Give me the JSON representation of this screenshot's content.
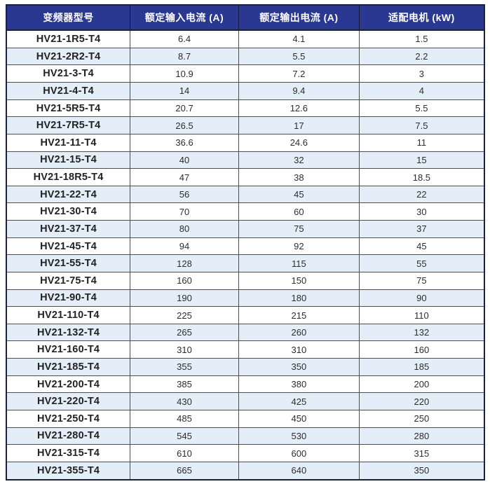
{
  "table": {
    "columns": [
      "变频器型号",
      "额定输入电流 (A)",
      "额定输出电流 (A)",
      "适配电机 (kW)"
    ],
    "rows": [
      [
        "HV21-1R5-T4",
        "6.4",
        "4.1",
        "1.5"
      ],
      [
        "HV21-2R2-T4",
        "8.7",
        "5.5",
        "2.2"
      ],
      [
        "HV21-3-T4",
        "10.9",
        "7.2",
        "3"
      ],
      [
        "HV21-4-T4",
        "14",
        "9.4",
        "4"
      ],
      [
        "HV21-5R5-T4",
        "20.7",
        "12.6",
        "5.5"
      ],
      [
        "HV21-7R5-T4",
        "26.5",
        "17",
        "7.5"
      ],
      [
        "HV21-11-T4",
        "36.6",
        "24.6",
        "11"
      ],
      [
        "HV21-15-T4",
        "40",
        "32",
        "15"
      ],
      [
        "HV21-18R5-T4",
        "47",
        "38",
        "18.5"
      ],
      [
        "HV21-22-T4",
        "56",
        "45",
        "22"
      ],
      [
        "HV21-30-T4",
        "70",
        "60",
        "30"
      ],
      [
        "HV21-37-T4",
        "80",
        "75",
        "37"
      ],
      [
        "HV21-45-T4",
        "94",
        "92",
        "45"
      ],
      [
        "HV21-55-T4",
        "128",
        "115",
        "55"
      ],
      [
        "HV21-75-T4",
        "160",
        "150",
        "75"
      ],
      [
        "HV21-90-T4",
        "190",
        "180",
        "90"
      ],
      [
        "HV21-110-T4",
        "225",
        "215",
        "110"
      ],
      [
        "HV21-132-T4",
        "265",
        "260",
        "132"
      ],
      [
        "HV21-160-T4",
        "310",
        "310",
        "160"
      ],
      [
        "HV21-185-T4",
        "355",
        "350",
        "185"
      ],
      [
        "HV21-200-T4",
        "385",
        "380",
        "200"
      ],
      [
        "HV21-220-T4",
        "430",
        "425",
        "220"
      ],
      [
        "HV21-250-T4",
        "485",
        "450",
        "250"
      ],
      [
        "HV21-280-T4",
        "545",
        "530",
        "280"
      ],
      [
        "HV21-315-T4",
        "610",
        "600",
        "315"
      ],
      [
        "HV21-355-T4",
        "665",
        "640",
        "350"
      ]
    ]
  },
  "colors": {
    "header_bg": "#2b3892",
    "header_text": "#ffffff",
    "stripe_bg": "#e3eef8",
    "row_bg": "#ffffff",
    "grid_line": "#4d4d4d",
    "outer_border": "#1c2040",
    "body_text": "#2d2d2d"
  }
}
